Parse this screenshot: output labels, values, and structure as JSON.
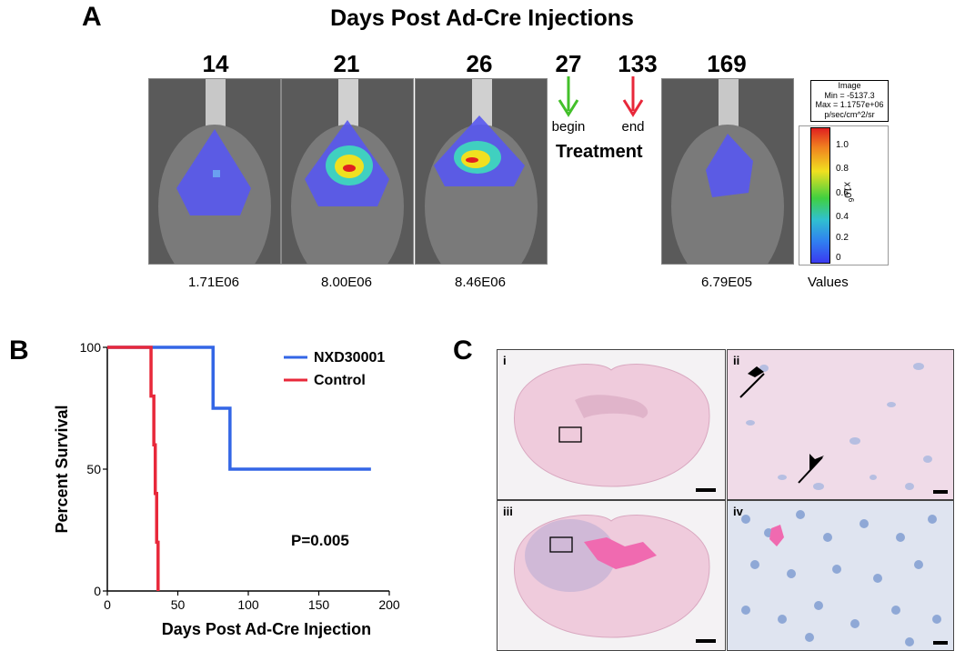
{
  "panel_a": {
    "label": "A",
    "title": "Days Post Ad-Cre Injections",
    "images": [
      {
        "day": "14",
        "value": "1.71E06"
      },
      {
        "day": "21",
        "value": "8.00E06"
      },
      {
        "day": "26",
        "value": "8.46E06"
      },
      {
        "day": "169",
        "value": "6.79E05"
      }
    ],
    "treatment": {
      "begin_day": "27",
      "begin_label": "begin",
      "end_day": "133",
      "end_label": "end",
      "label": "Treatment"
    },
    "scale_legend": {
      "line1": "Image",
      "line2": "Min = -5137.3",
      "line3": "Max = 1.1757e+06",
      "line4": "p/sec/cm^2/sr",
      "ticks": [
        "1.0",
        "0.8",
        "0.6",
        "0.4",
        "0.2",
        "0"
      ],
      "unit": "x10",
      "exponent": "6",
      "values_label": "Values"
    },
    "colors": {
      "begin_arrow": "#43c02a",
      "end_arrow": "#e8283a"
    }
  },
  "panel_b": {
    "label": "B",
    "p_value": "P=0.005"
  },
  "panel_c": {
    "label": "C",
    "subpanels": [
      "i",
      "ii",
      "iii",
      "iv"
    ]
  },
  "chart_data": {
    "type": "line",
    "subtype": "kaplan-meier",
    "xlabel": "Days Post Ad-Cre Injection",
    "ylabel": "Percent Survival",
    "xlim": [
      0,
      200
    ],
    "ylim": [
      0,
      100
    ],
    "xticks": [
      0,
      50,
      100,
      150,
      200
    ],
    "yticks": [
      0,
      50,
      100
    ],
    "legend_position": "top-right",
    "series": [
      {
        "name": "NXD30001",
        "color": "#3366e6",
        "x": [
          0,
          75,
          75,
          87,
          87,
          187
        ],
        "y": [
          100,
          100,
          75,
          75,
          50,
          50
        ]
      },
      {
        "name": "Control",
        "color": "#e8283a",
        "x": [
          0,
          31,
          31,
          33,
          33,
          34,
          34,
          35,
          35,
          36,
          36
        ],
        "y": [
          100,
          100,
          80,
          80,
          60,
          60,
          40,
          40,
          20,
          20,
          0
        ]
      }
    ],
    "annotation": "P=0.005"
  }
}
